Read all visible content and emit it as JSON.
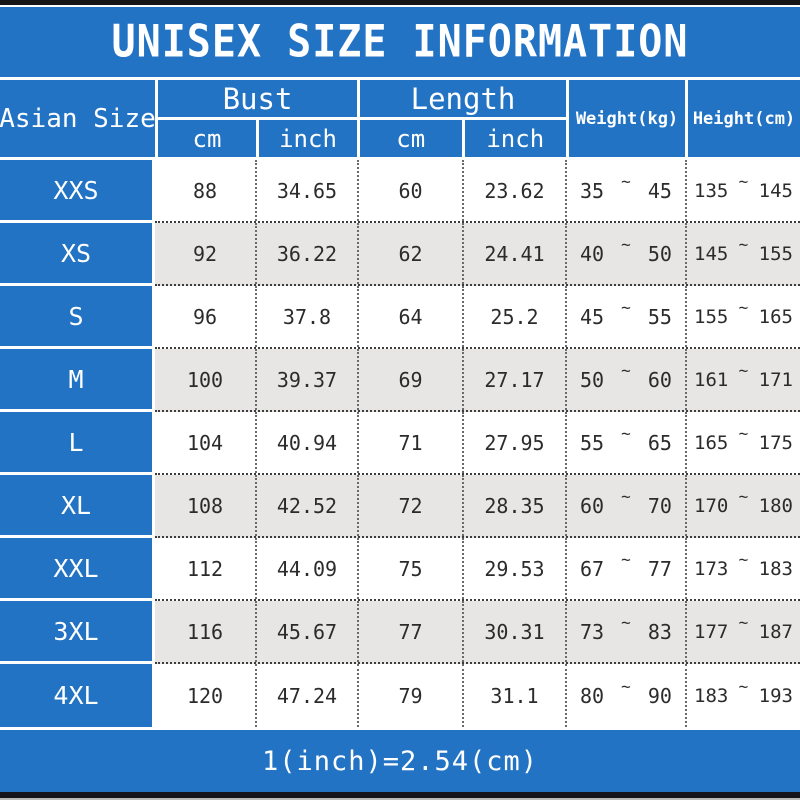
{
  "title": "UNISEX SIZE INFORMATION",
  "colors": {
    "banner_blue": "#2373c4",
    "row_alt_gray": "#e8e6e4",
    "header_text": "#ffffff",
    "body_text": "#2b2b2b"
  },
  "table": {
    "corner_header": "Asian Size",
    "bust_label": "Bust",
    "bust_sub_cm": "cm",
    "bust_sub_inch": "inch",
    "length_label": "Length",
    "length_sub_cm": "cm",
    "length_sub_inch": "inch",
    "weight_label": "Weight(kg)",
    "height_label": "Height(cm)",
    "tilde": "~",
    "rows": [
      {
        "size": "XXS",
        "bust_cm": "88",
        "bust_inch": "34.65",
        "length_cm": "60",
        "length_inch": "23.62",
        "weight_min": "35",
        "weight_max": "45",
        "height_min": "135",
        "height_max": "145"
      },
      {
        "size": "XS",
        "bust_cm": "92",
        "bust_inch": "36.22",
        "length_cm": "62",
        "length_inch": "24.41",
        "weight_min": "40",
        "weight_max": "50",
        "height_min": "145",
        "height_max": "155"
      },
      {
        "size": "S",
        "bust_cm": "96",
        "bust_inch": "37.8",
        "length_cm": "64",
        "length_inch": "25.2",
        "weight_min": "45",
        "weight_max": "55",
        "height_min": "155",
        "height_max": "165"
      },
      {
        "size": "M",
        "bust_cm": "100",
        "bust_inch": "39.37",
        "length_cm": "69",
        "length_inch": "27.17",
        "weight_min": "50",
        "weight_max": "60",
        "height_min": "161",
        "height_max": "171"
      },
      {
        "size": "L",
        "bust_cm": "104",
        "bust_inch": "40.94",
        "length_cm": "71",
        "length_inch": "27.95",
        "weight_min": "55",
        "weight_max": "65",
        "height_min": "165",
        "height_max": "175"
      },
      {
        "size": "XL",
        "bust_cm": "108",
        "bust_inch": "42.52",
        "length_cm": "72",
        "length_inch": "28.35",
        "weight_min": "60",
        "weight_max": "70",
        "height_min": "170",
        "height_max": "180"
      },
      {
        "size": "XXL",
        "bust_cm": "112",
        "bust_inch": "44.09",
        "length_cm": "75",
        "length_inch": "29.53",
        "weight_min": "67",
        "weight_max": "77",
        "height_min": "173",
        "height_max": "183"
      },
      {
        "size": "3XL",
        "bust_cm": "116",
        "bust_inch": "45.67",
        "length_cm": "77",
        "length_inch": "30.31",
        "weight_min": "73",
        "weight_max": "83",
        "height_min": "177",
        "height_max": "187"
      },
      {
        "size": "4XL",
        "bust_cm": "120",
        "bust_inch": "47.24",
        "length_cm": "79",
        "length_inch": "31.1",
        "weight_min": "80",
        "weight_max": "90",
        "height_min": "183",
        "height_max": "193"
      }
    ]
  },
  "footer": {
    "conversion_note": "1(inch)=2.54(cm)"
  }
}
